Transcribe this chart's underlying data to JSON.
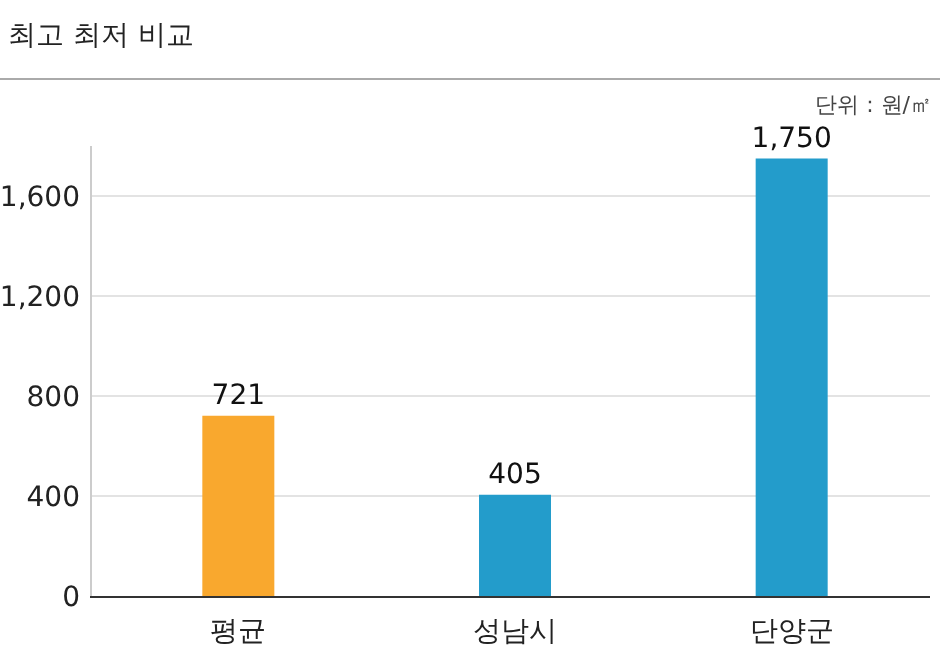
{
  "chart_data": {
    "type": "bar",
    "title": "최고 최저 비교",
    "annotations": [
      "단위 : 원/㎡"
    ],
    "categories": [
      "평균",
      "성남시",
      "단양군"
    ],
    "values": [
      721,
      405,
      1750
    ],
    "value_labels": [
      "721",
      "405",
      "1,750"
    ],
    "colors": [
      "#f9a82e",
      "#239ccb",
      "#239ccb"
    ],
    "ylim": [
      0,
      1800
    ],
    "yticks": [
      0,
      400,
      800,
      {
        "value": 1200,
        "label": "1,200"
      },
      {
        "value": 1600,
        "label": "1,600"
      }
    ],
    "grid": "y"
  }
}
